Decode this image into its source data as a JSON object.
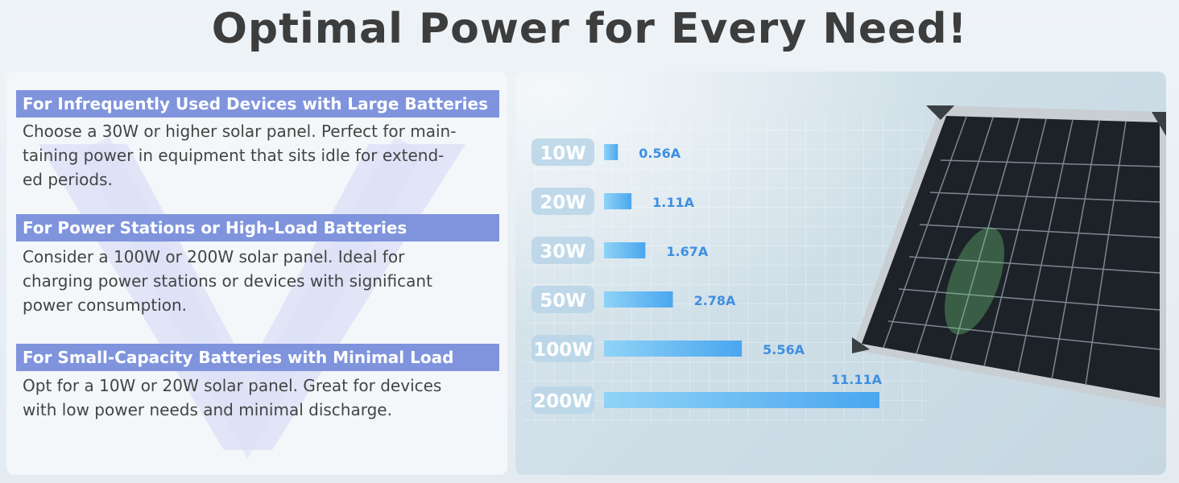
{
  "title": "Optimal Power for Every Need!",
  "sections": [
    {
      "heading": "For Infrequently Used Devices with Large Batteries",
      "lines": [
        "Choose a 30W or higher solar panel. Perfect for main-",
        "taining power in equipment that sits idle for extend-",
        "ed periods."
      ]
    },
    {
      "heading": "For Power Stations or High-Load Batteries",
      "lines": [
        "Consider a 100W or 200W solar panel. Ideal for",
        "charging power stations or devices with significant",
        "power consumption."
      ]
    },
    {
      "heading": "For Small-Capacity Batteries with Minimal Load",
      "lines": [
        "Opt for a 10W or 20W solar panel. Great for devices",
        "with low power needs and minimal discharge."
      ]
    }
  ],
  "chart_data": {
    "type": "bar",
    "orientation": "horizontal",
    "categories": [
      "10W",
      "20W",
      "30W",
      "50W",
      "100W",
      "200W"
    ],
    "values": [
      0.56,
      1.11,
      1.67,
      2.78,
      5.56,
      11.11
    ],
    "value_labels": [
      "0.56A",
      "1.11A",
      "1.67A",
      "2.78A",
      "5.56A",
      "11.11A"
    ],
    "unit": "A",
    "xlim": [
      0,
      11.11
    ],
    "colors": {
      "bar_start": "#8fd3f7",
      "bar_end": "#4aa6ef",
      "label": "#3f8fe0",
      "category_bg": "#b9d5e8"
    }
  }
}
